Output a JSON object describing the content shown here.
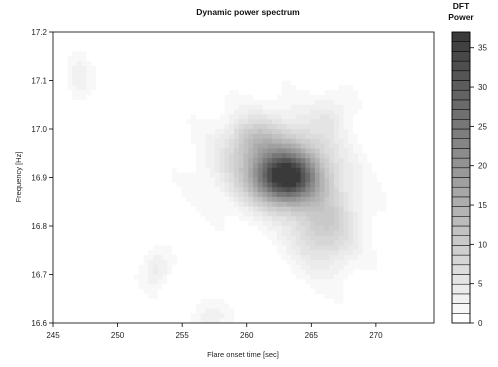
{
  "chart_data": {
    "type": "heatmap",
    "title": "Dynamic power spectrum",
    "xlabel": "Flare onset time [sec]",
    "ylabel": "Frequency [Hz]",
    "xlim": [
      245,
      274.5
    ],
    "ylim": [
      16.6,
      17.2
    ],
    "x_ticks": [
      "245",
      "250",
      "255",
      "260",
      "265",
      "270"
    ],
    "y_ticks": [
      "16.6",
      "16.7",
      "16.8",
      "16.9",
      "17.0",
      "17.1",
      "17.2"
    ],
    "colorbar": {
      "title_line1": "DFT",
      "title_line2": "Power",
      "min": 0,
      "max": 37,
      "ticks": [
        "0",
        "5",
        "10",
        "15",
        "20",
        "25",
        "30",
        "35"
      ],
      "levels": 30,
      "color_low": "#ffffff",
      "color_high": "#3a3a3a"
    },
    "peaks": [
      {
        "x": 263.0,
        "y": 16.9,
        "sx": 1.6,
        "sy": 0.035,
        "power": 30
      },
      {
        "x": 262.5,
        "y": 16.93,
        "sx": 3.0,
        "sy": 0.06,
        "power": 12
      },
      {
        "x": 266.0,
        "y": 16.8,
        "sx": 1.8,
        "sy": 0.06,
        "power": 9
      },
      {
        "x": 260.5,
        "y": 16.98,
        "sx": 1.2,
        "sy": 0.03,
        "power": 5
      },
      {
        "x": 253.0,
        "y": 16.71,
        "sx": 0.7,
        "sy": 0.025,
        "power": 4
      },
      {
        "x": 257.0,
        "y": 16.61,
        "sx": 1.0,
        "sy": 0.02,
        "power": 3
      },
      {
        "x": 247.0,
        "y": 17.1,
        "sx": 0.6,
        "sy": 0.03,
        "power": 3
      },
      {
        "x": 266.5,
        "y": 17.03,
        "sx": 1.0,
        "sy": 0.03,
        "power": 3
      }
    ]
  }
}
